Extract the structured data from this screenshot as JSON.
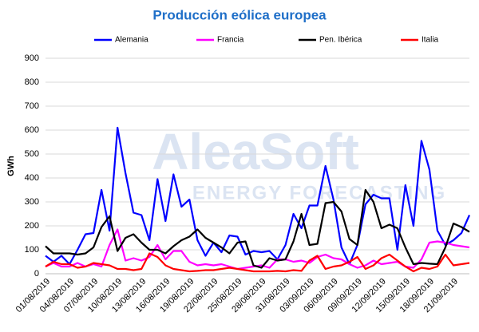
{
  "chart_data": {
    "type": "line",
    "title": "Producción eólica europea",
    "y_label": "GWh",
    "watermark": [
      "AleaSoft",
      "ENERGY FORECASTING"
    ],
    "categories": [
      "01/08/2019",
      null,
      null,
      "04/08/2019",
      null,
      null,
      "07/08/2019",
      null,
      null,
      "10/08/2019",
      null,
      null,
      "13/08/2019",
      null,
      null,
      "16/08/2019",
      null,
      null,
      "19/08/2019",
      null,
      null,
      "22/08/2019",
      null,
      null,
      "25/08/2019",
      null,
      null,
      "28/08/2019",
      null,
      null,
      "31/08/2019",
      null,
      null,
      "03/09/2019",
      null,
      null,
      "06/09/2019",
      null,
      null,
      "09/09/2019",
      null,
      null,
      "12/09/2019",
      null,
      null,
      "15/09/2019",
      null,
      null,
      "18/09/2019",
      null,
      null,
      "21/09/2019",
      null,
      null
    ],
    "series": [
      {
        "name": "Alemania",
        "color": "#0000ff",
        "values": [
          75,
          50,
          75,
          40,
          100,
          165,
          170,
          350,
          180,
          610,
          420,
          255,
          245,
          140,
          395,
          220,
          415,
          280,
          310,
          140,
          75,
          130,
          90,
          160,
          155,
          80,
          95,
          90,
          95,
          60,
          120,
          250,
          190,
          285,
          285,
          450,
          310,
          110,
          40,
          120,
          290,
          330,
          315,
          315,
          100,
          370,
          200,
          555,
          435,
          180,
          120,
          140,
          170,
          245
        ]
      },
      {
        "name": "Francia",
        "color": "#ff00ff",
        "values": [
          30,
          45,
          30,
          30,
          45,
          30,
          40,
          30,
          120,
          185,
          55,
          65,
          55,
          70,
          120,
          60,
          95,
          95,
          50,
          35,
          40,
          35,
          40,
          30,
          20,
          25,
          30,
          35,
          25,
          60,
          60,
          50,
          55,
          45,
          70,
          80,
          65,
          60,
          40,
          25,
          35,
          55,
          40,
          45,
          50,
          30,
          25,
          60,
          130,
          135,
          130,
          120,
          115,
          110
        ]
      },
      {
        "name": "Pen. Ibérica",
        "color": "#000000",
        "values": [
          115,
          85,
          85,
          85,
          80,
          85,
          110,
          195,
          240,
          95,
          150,
          165,
          130,
          100,
          100,
          85,
          115,
          140,
          155,
          185,
          150,
          130,
          110,
          85,
          130,
          135,
          35,
          25,
          65,
          55,
          60,
          135,
          250,
          120,
          125,
          295,
          300,
          260,
          145,
          120,
          350,
          300,
          190,
          205,
          190,
          110,
          40,
          45,
          42,
          40,
          110,
          210,
          195,
          175
        ]
      },
      {
        "name": "Italia",
        "color": "#ff0000",
        "values": [
          30,
          50,
          40,
          40,
          25,
          30,
          45,
          40,
          35,
          20,
          20,
          15,
          20,
          85,
          70,
          35,
          20,
          15,
          10,
          12,
          15,
          15,
          20,
          25,
          20,
          15,
          10,
          10,
          10,
          12,
          10,
          15,
          12,
          55,
          75,
          20,
          30,
          35,
          50,
          70,
          20,
          35,
          65,
          80,
          55,
          30,
          10,
          25,
          20,
          30,
          80,
          35,
          40,
          45
        ]
      }
    ],
    "ylim": [
      0,
      900
    ],
    "yticks": [
      0,
      100,
      200,
      300,
      400,
      500,
      600,
      700,
      800,
      900
    ],
    "grid": true
  }
}
